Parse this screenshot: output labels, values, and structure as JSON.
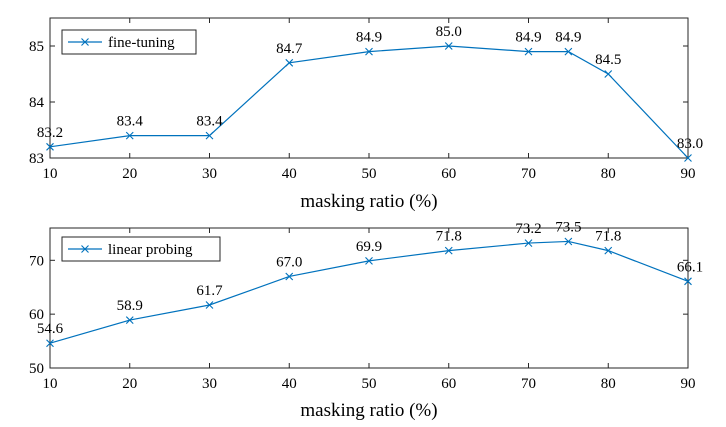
{
  "chart_data": [
    {
      "type": "line",
      "legend": "fine-tuning",
      "legend_position": "top-left",
      "xlabel": "masking ratio (%)",
      "ylabel": "",
      "x_ticks": [
        10,
        20,
        30,
        40,
        50,
        60,
        70,
        80,
        90
      ],
      "y_ticks": [
        83,
        84,
        85
      ],
      "xlim": [
        10,
        90
      ],
      "ylim": [
        83,
        85.5
      ],
      "color": "#0072bd",
      "series": [
        {
          "name": "fine-tuning",
          "x": [
            10,
            20,
            30,
            40,
            50,
            60,
            70,
            75,
            80,
            90
          ],
          "y": [
            83.2,
            83.4,
            83.4,
            84.7,
            84.9,
            85.0,
            84.9,
            84.9,
            84.5,
            83.0
          ],
          "labels": [
            "83.2",
            "83.4",
            "83.4",
            "84.7",
            "84.9",
            "85.0",
            "84.9",
            "84.9",
            "84.5",
            "83.0"
          ]
        }
      ]
    },
    {
      "type": "line",
      "legend": "linear probing",
      "legend_position": "top-left",
      "xlabel": "masking ratio (%)",
      "ylabel": "",
      "x_ticks": [
        10,
        20,
        30,
        40,
        50,
        60,
        70,
        80,
        90
      ],
      "y_ticks": [
        50,
        60,
        70
      ],
      "xlim": [
        10,
        90
      ],
      "ylim": [
        50,
        76
      ],
      "color": "#0072bd",
      "series": [
        {
          "name": "linear probing",
          "x": [
            10,
            20,
            30,
            40,
            50,
            60,
            70,
            75,
            80,
            90
          ],
          "y": [
            54.6,
            58.9,
            61.7,
            67.0,
            69.9,
            71.8,
            73.2,
            73.5,
            71.8,
            66.1
          ],
          "labels": [
            "54.6",
            "58.9",
            "61.7",
            "67.0",
            "69.9",
            "71.8",
            "73.2",
            "73.5",
            "71.8",
            "66.1"
          ]
        }
      ]
    }
  ]
}
